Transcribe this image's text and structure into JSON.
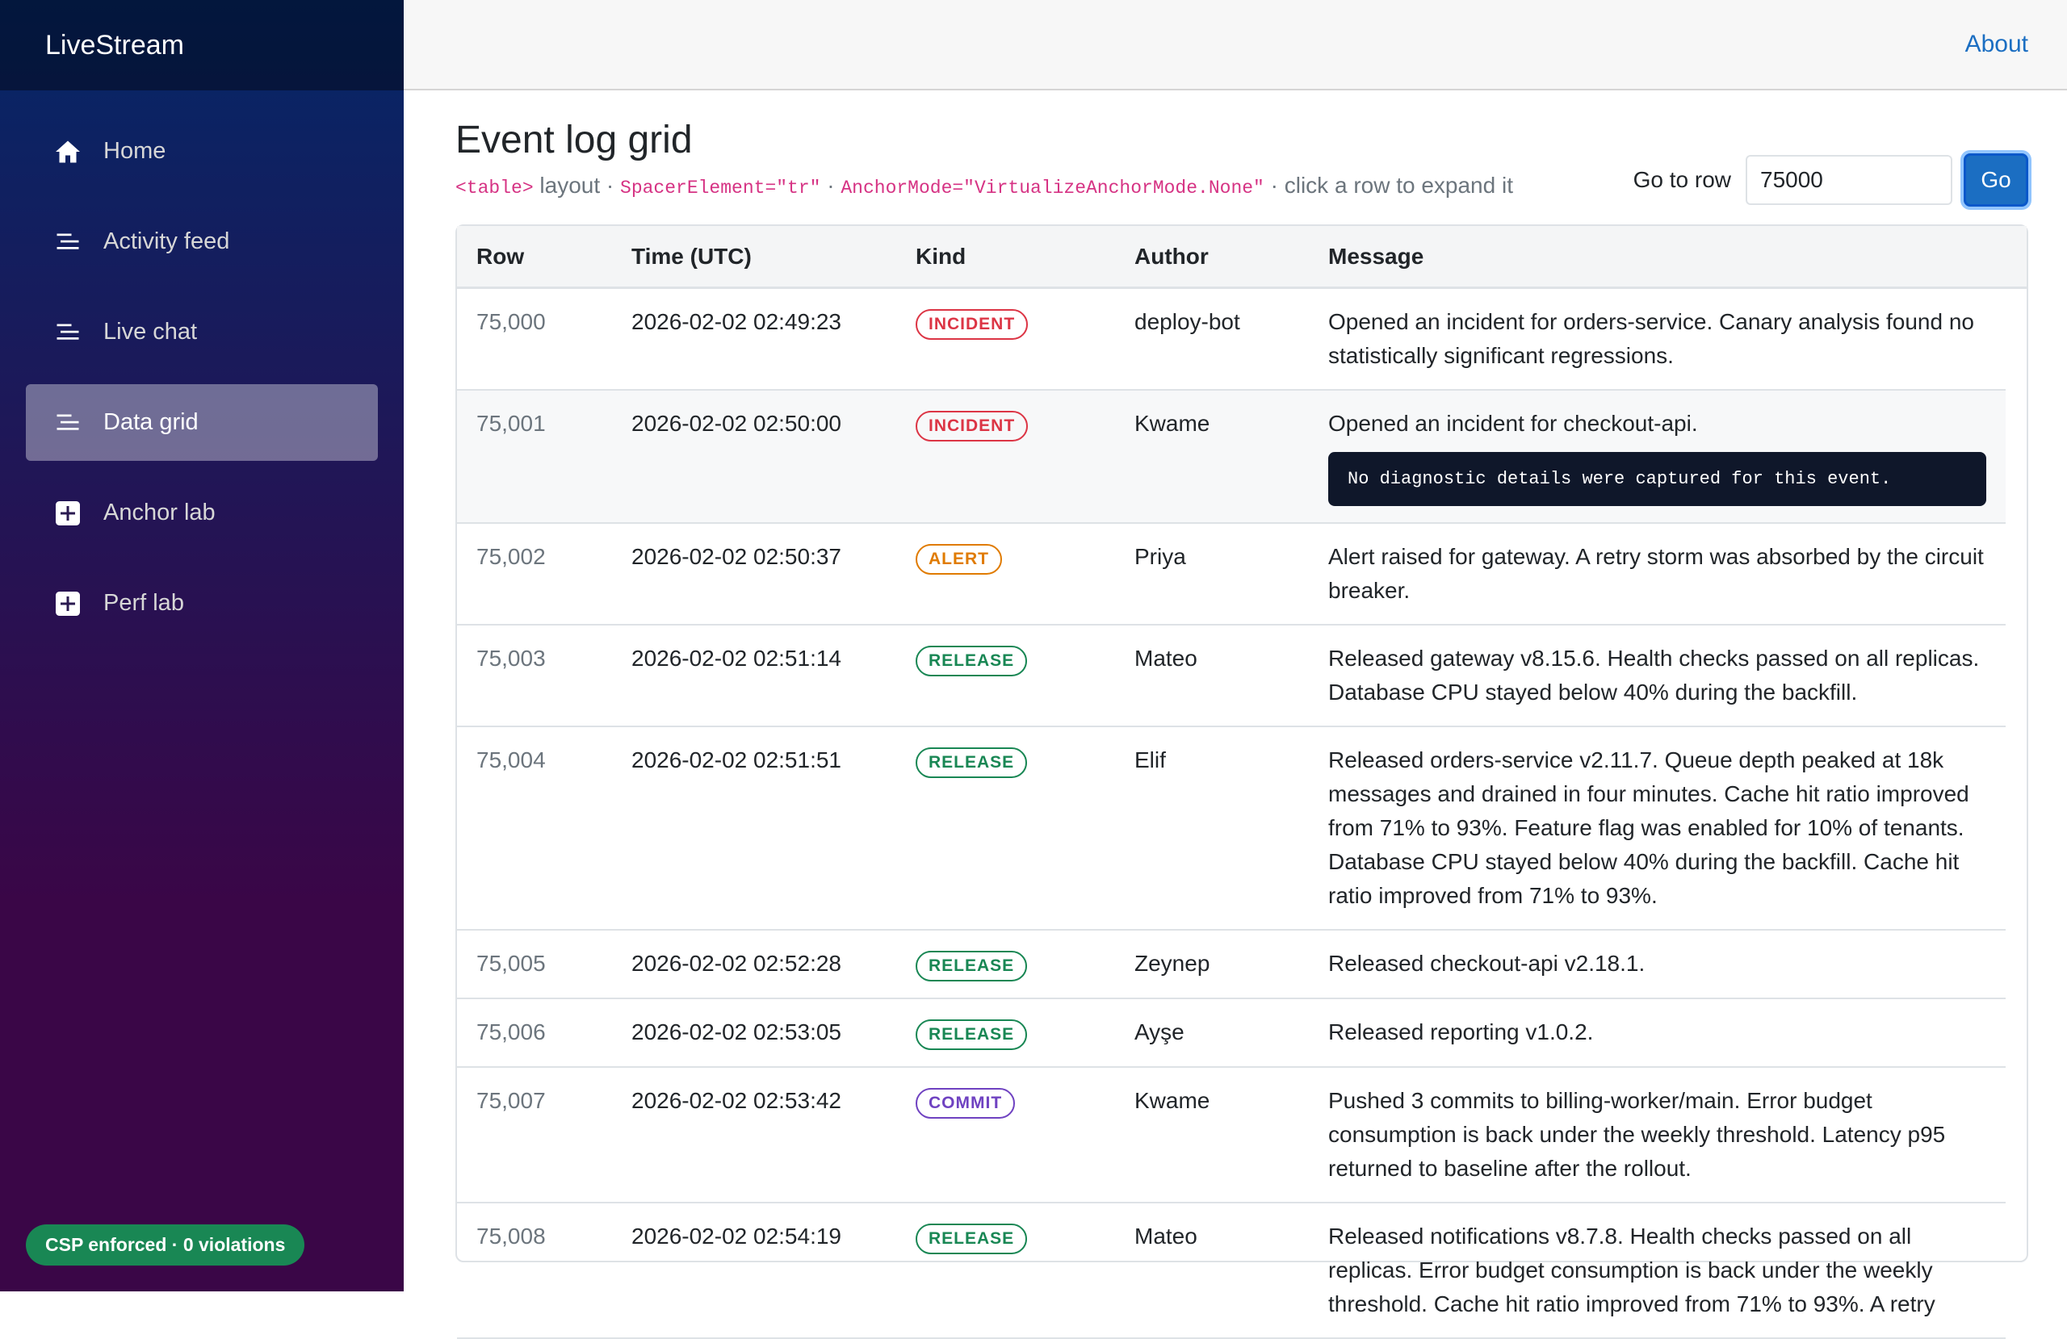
{
  "app": {
    "brand": "LiveStream"
  },
  "sidebar": {
    "items": [
      {
        "label": "Home",
        "icon": "home-icon",
        "active": false
      },
      {
        "label": "Activity feed",
        "icon": "list-icon",
        "active": false
      },
      {
        "label": "Live chat",
        "icon": "list-icon",
        "active": false
      },
      {
        "label": "Data grid",
        "icon": "list-icon",
        "active": true
      },
      {
        "label": "Anchor lab",
        "icon": "plus-icon",
        "active": false
      },
      {
        "label": "Perf lab",
        "icon": "plus-icon",
        "active": false
      }
    ],
    "csp_badge": "CSP enforced · 0 violations"
  },
  "top_row": {
    "about_label": "About"
  },
  "page": {
    "title": "Event log grid",
    "subtitle": {
      "code1": "<table>",
      "text1": " layout · ",
      "code2": "SpacerElement=\"tr\"",
      "text2": " · ",
      "code3": "AnchorMode=\"VirtualizeAnchorMode.None\"",
      "text3": " · click a row to expand it"
    },
    "goto": {
      "label": "Go to row",
      "value": "75000",
      "button": "Go"
    }
  },
  "colors": {
    "incident": "#dc3545",
    "alert": "#e07b00",
    "release": "#198754",
    "commit": "#6f42c1"
  },
  "grid": {
    "columns": [
      "Row",
      "Time (UTC)",
      "Kind",
      "Author",
      "Message"
    ],
    "rows": [
      {
        "row": "75,000",
        "time": "2026-02-02 02:49:23",
        "kind": "INCIDENT",
        "kind_key": "incident",
        "author": "deploy-bot",
        "message": "Opened an incident for orders-service. Canary analysis found no statistically significant regressions.",
        "expanded": false
      },
      {
        "row": "75,001",
        "time": "2026-02-02 02:50:00",
        "kind": "INCIDENT",
        "kind_key": "incident",
        "author": "Kwame",
        "message": "Opened an incident for checkout-api.",
        "expanded": true,
        "detail": "No diagnostic details were captured for this event."
      },
      {
        "row": "75,002",
        "time": "2026-02-02 02:50:37",
        "kind": "ALERT",
        "kind_key": "alert",
        "author": "Priya",
        "message": "Alert raised for gateway. A retry storm was absorbed by the circuit breaker.",
        "expanded": false
      },
      {
        "row": "75,003",
        "time": "2026-02-02 02:51:14",
        "kind": "RELEASE",
        "kind_key": "release",
        "author": "Mateo",
        "message": "Released gateway v8.15.6. Health checks passed on all replicas. Database CPU stayed below 40% during the backfill.",
        "expanded": false
      },
      {
        "row": "75,004",
        "time": "2026-02-02 02:51:51",
        "kind": "RELEASE",
        "kind_key": "release",
        "author": "Elif",
        "message": "Released orders-service v2.11.7. Queue depth peaked at 18k messages and drained in four minutes. Cache hit ratio improved from 71% to 93%. Feature flag was enabled for 10% of tenants. Database CPU stayed below 40% during the backfill. Cache hit ratio improved from 71% to 93%.",
        "expanded": false
      },
      {
        "row": "75,005",
        "time": "2026-02-02 02:52:28",
        "kind": "RELEASE",
        "kind_key": "release",
        "author": "Zeynep",
        "message": "Released checkout-api v2.18.1.",
        "expanded": false
      },
      {
        "row": "75,006",
        "time": "2026-02-02 02:53:05",
        "kind": "RELEASE",
        "kind_key": "release",
        "author": "Ayşe",
        "message": "Released reporting v1.0.2.",
        "expanded": false
      },
      {
        "row": "75,007",
        "time": "2026-02-02 02:53:42",
        "kind": "COMMIT",
        "kind_key": "commit",
        "author": "Kwame",
        "message": "Pushed 3 commits to billing-worker/main. Error budget consumption is back under the weekly threshold. Latency p95 returned to baseline after the rollout.",
        "expanded": false
      },
      {
        "row": "75,008",
        "time": "2026-02-02 02:54:19",
        "kind": "RELEASE",
        "kind_key": "release",
        "author": "Mateo",
        "message": "Released notifications v8.7.8. Health checks passed on all replicas. Error budget consumption is back under the weekly threshold. Cache hit ratio improved from 71% to 93%. A retry",
        "expanded": false
      }
    ]
  }
}
